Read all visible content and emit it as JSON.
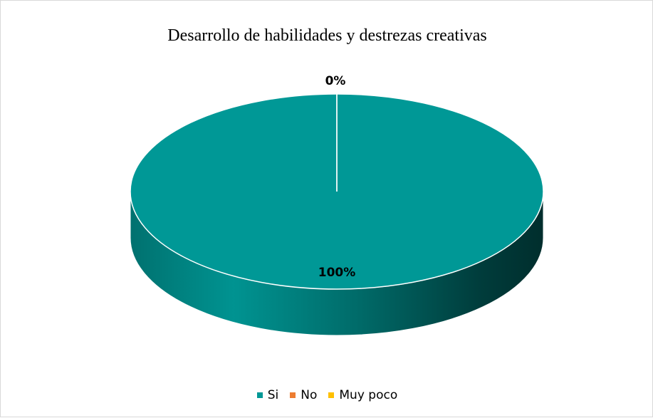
{
  "chart_data": {
    "type": "pie",
    "title": "Desarrollo de habilidades y destrezas creativas",
    "categories": [
      "Si",
      "No",
      "Muy poco"
    ],
    "values": [
      100,
      0,
      0
    ],
    "data_labels": [
      "100%",
      "0%",
      "0%"
    ],
    "colors": [
      "#009896",
      "#ed7d31",
      "#ffc000"
    ],
    "legend_position": "bottom",
    "style": "3d"
  }
}
